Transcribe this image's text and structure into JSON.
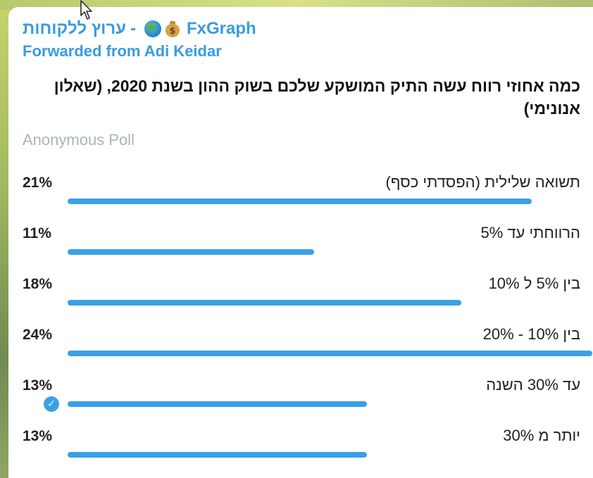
{
  "message": {
    "channel": {
      "hebrew_name": "ערוץ ללקוחות",
      "separator": "-",
      "icons": [
        "globe-icon",
        "money-bag-icon"
      ],
      "brand_name": "FxGraph"
    },
    "forwarded_from": "Forwarded from Adi Keidar",
    "question": "כמה אחוזי רווח עשה התיק המושקע שלכם בשוק ההון בשנת 2020, (שאלון אנונימי)",
    "poll_type": "Anonymous Poll",
    "options": [
      {
        "label": "תשואה שלילית (הפסדתי כסף)",
        "percent": "21%",
        "value": 0.21,
        "bar_fraction": 0.885,
        "selected": false
      },
      {
        "label": "הרווחתי עד 5%",
        "percent": "11%",
        "value": 0.11,
        "bar_fraction": 0.47,
        "selected": false
      },
      {
        "label": "בין 5% ל 10%",
        "percent": "18%",
        "value": 0.18,
        "bar_fraction": 0.75,
        "selected": false
      },
      {
        "label": "בין 10% - 20%",
        "percent": "24%",
        "value": 0.24,
        "bar_fraction": 1.0,
        "selected": false
      },
      {
        "label": "עד 30% השנה",
        "percent": "13%",
        "value": 0.13,
        "bar_fraction": 0.57,
        "selected": true
      },
      {
        "label": "יותר מ 30%",
        "percent": "13%",
        "value": 0.13,
        "bar_fraction": 0.57,
        "selected": false
      }
    ]
  },
  "colors": {
    "accent": "#3aa0e6",
    "link": "#3a9be0",
    "muted": "#a8b3bc",
    "text": "#222222"
  }
}
